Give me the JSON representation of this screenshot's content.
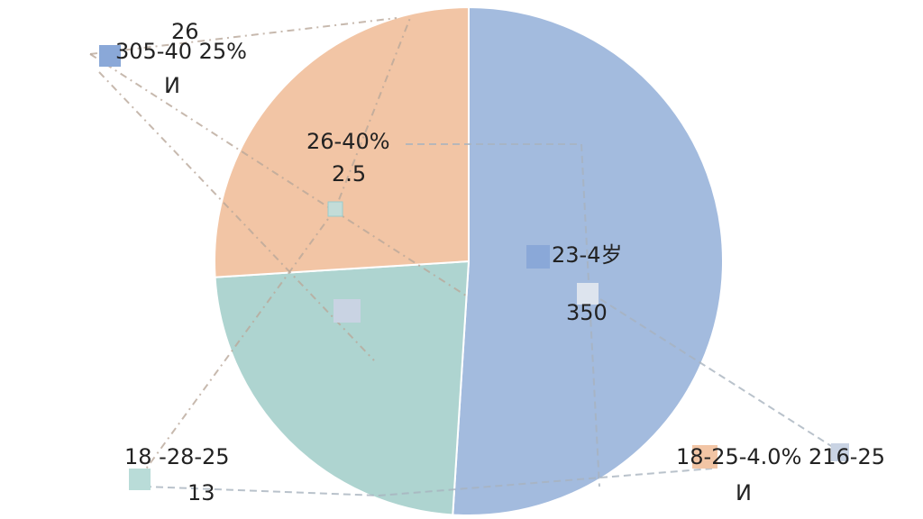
{
  "chart_data": {
    "type": "pie",
    "values": [
      51,
      23,
      26
    ],
    "colors": [
      "#a3bbde",
      "#aed4d0",
      "#f2c5a5"
    ],
    "annotations": [
      "26",
      "305-40 25%",
      "И",
      "26-40%",
      "2.5",
      "23-4岁",
      "350",
      "18 -28-25",
      "13",
      "18-25-4.0% 216-25",
      "И"
    ]
  }
}
